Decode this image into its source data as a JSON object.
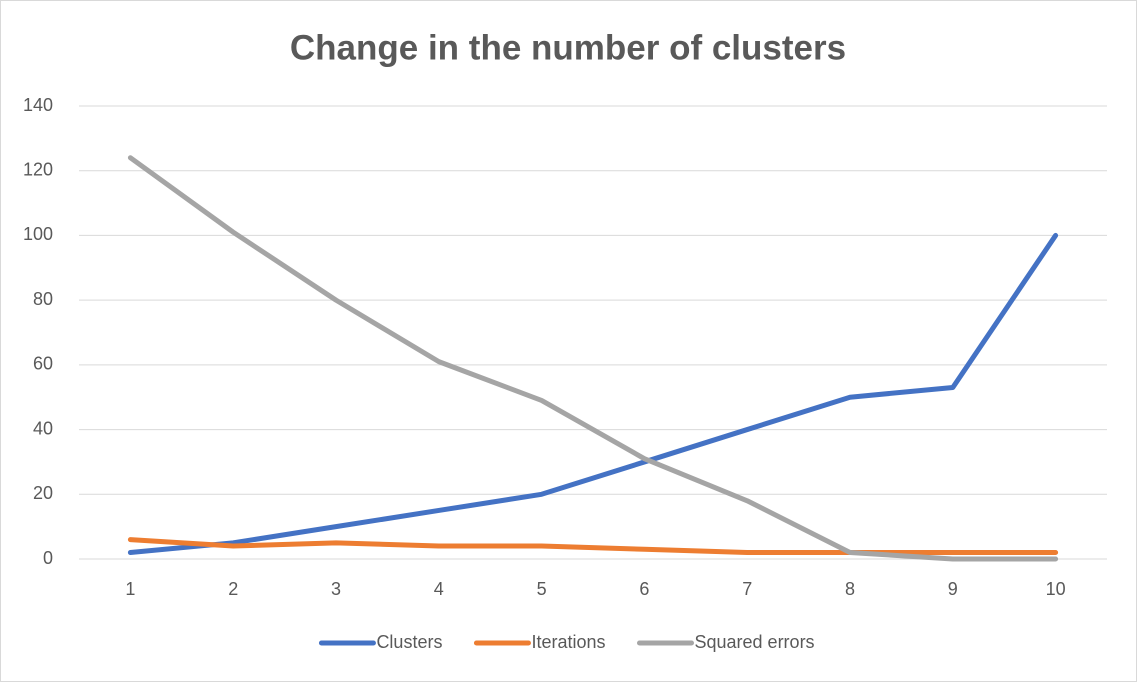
{
  "chart_data": {
    "type": "line",
    "title": "Change in the number of clusters",
    "categories": [
      "1",
      "2",
      "3",
      "4",
      "5",
      "6",
      "7",
      "8",
      "9",
      "10"
    ],
    "series": [
      {
        "name": "Clusters",
        "color": "#4472c4",
        "values": [
          2,
          5,
          10,
          15,
          20,
          30,
          40,
          50,
          53,
          100
        ]
      },
      {
        "name": "Iterations",
        "color": "#ed7d31",
        "values": [
          6,
          4,
          5,
          4,
          4,
          3,
          2,
          2,
          2,
          2
        ]
      },
      {
        "name": "Squared errors",
        "color": "#a5a5a5",
        "values": [
          124,
          101,
          80,
          61,
          49,
          31,
          18,
          2,
          0,
          0
        ]
      }
    ],
    "ylim": [
      0,
      140
    ],
    "yticks": [
      0,
      20,
      40,
      60,
      80,
      100,
      120,
      140
    ],
    "grid": true,
    "legend": "bottom"
  }
}
